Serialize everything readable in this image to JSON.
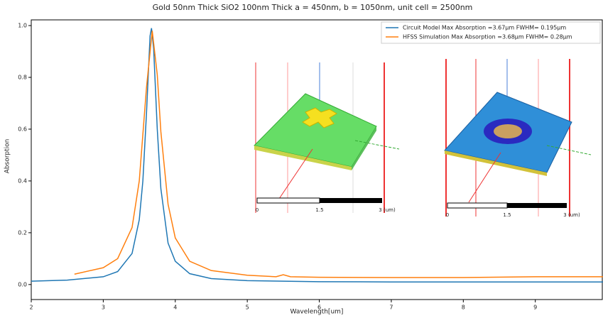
{
  "chart_data": {
    "type": "line",
    "title": "Gold 50nm Thick SiO2 100nm Thick a = 450nm, b = 1050nm, unit cell = 2500nm",
    "x_label": "Wavelength[um]",
    "y_label": "Absorption",
    "xlim": [
      2,
      9.94
    ],
    "ylim": [
      -0.058,
      1.022
    ],
    "xticks": [
      2,
      3,
      4,
      5,
      6,
      7,
      8,
      9
    ],
    "yticks": [
      {
        "value": 0,
        "label": "0.0"
      },
      {
        "value": 0.2,
        "label": "0.2"
      },
      {
        "value": 0.4,
        "label": "0.4"
      },
      {
        "value": 0.6,
        "label": "0.6"
      },
      {
        "value": 0.8,
        "label": "0.8"
      },
      {
        "value": 1,
        "label": "1.0"
      }
    ],
    "legend": "upper right",
    "series": [
      {
        "name": "Circuit Model Max Absorption =3.67μm FWHM= 0.195μm",
        "color": "#1f77b4",
        "x": [
          2,
          2.5,
          3,
          3.2,
          3.4,
          3.5,
          3.55,
          3.6,
          3.65,
          3.67,
          3.7,
          3.75,
          3.8,
          3.9,
          4.0,
          4.2,
          4.5,
          5,
          6,
          7,
          8,
          9,
          9.94
        ],
        "values": [
          0.013,
          0.017,
          0.03,
          0.05,
          0.12,
          0.25,
          0.4,
          0.66,
          0.96,
          0.99,
          0.91,
          0.6,
          0.37,
          0.16,
          0.09,
          0.042,
          0.023,
          0.015,
          0.011,
          0.01,
          0.01,
          0.01,
          0.01
        ]
      },
      {
        "name": "HFSS Simulation Max Absorption =3.68μm FWHM= 0.28μm",
        "color": "#ff7f0e",
        "x": [
          2.6,
          3.0,
          3.2,
          3.4,
          3.5,
          3.6,
          3.68,
          3.75,
          3.8,
          3.9,
          4.0,
          4.2,
          4.5,
          5,
          5.4,
          5.5,
          5.6,
          6,
          7,
          8,
          9,
          9.94
        ],
        "values": [
          0.04,
          0.065,
          0.1,
          0.22,
          0.4,
          0.76,
          0.98,
          0.81,
          0.59,
          0.31,
          0.18,
          0.09,
          0.054,
          0.036,
          0.03,
          0.038,
          0.03,
          0.028,
          0.027,
          0.027,
          0.03,
          0.03
        ]
      }
    ],
    "insets": [
      {
        "scale_labels": [
          "0",
          "1.5",
          "3 (um)"
        ]
      },
      {
        "scale_labels": [
          "0",
          "1.5",
          "3 (um)"
        ]
      }
    ]
  }
}
